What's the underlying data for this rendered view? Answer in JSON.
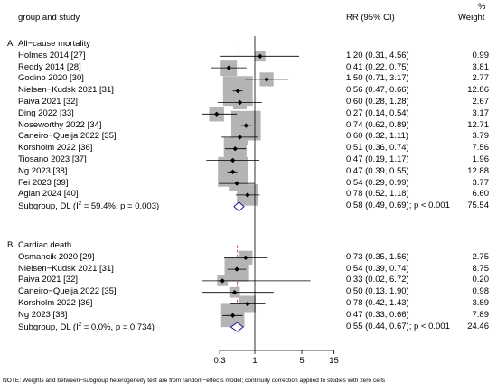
{
  "header": {
    "col_study": "group and study",
    "col_rr": "RR (95% CI)",
    "col_weight_1": "%",
    "col_weight_2": "Weight"
  },
  "note": "NOTE: Weights and between−subgroup heterogeneity test are from random−effects model; continuity correction applied to studies with zero cells",
  "chart_data": {
    "type": "forest",
    "x_scale": "log",
    "x_ticks": [
      0.3,
      1,
      5,
      15
    ],
    "x_tick_labels": [
      "0.3",
      "1",
      "5",
      "15"
    ],
    "reference_line": 1,
    "groups": [
      {
        "letter": "A",
        "title": "All−cause mortality",
        "pooled_estimate": 0.58,
        "studies": [
          {
            "label": "Holmes 2014 [27]",
            "rr": 1.2,
            "lo": 0.31,
            "hi": 4.56,
            "ci_text": "1.20 (0.31, 4.56)",
            "weight": "0.99"
          },
          {
            "label": "Reddy 2014 [28]",
            "rr": 0.41,
            "lo": 0.22,
            "hi": 0.75,
            "ci_text": "0.41 (0.22, 0.75)",
            "weight": "3.81"
          },
          {
            "label": "Godino 2020 [30]",
            "rr": 1.5,
            "lo": 0.71,
            "hi": 3.17,
            "ci_text": "1.50 (0.71, 3.17)",
            "weight": "2.77"
          },
          {
            "label": "Nielsen−Kudsk 2021 [31]",
            "rr": 0.56,
            "lo": 0.47,
            "hi": 0.66,
            "ci_text": "0.56 (0.47, 0.66)",
            "weight": "12.86"
          },
          {
            "label": "Paiva 2021 [32]",
            "rr": 0.6,
            "lo": 0.28,
            "hi": 1.28,
            "ci_text": "0.60 (0.28, 1.28)",
            "weight": "2.67"
          },
          {
            "label": "Ding 2022 [33]",
            "rr": 0.27,
            "lo": 0.14,
            "hi": 0.54,
            "ci_text": "0.27 (0.14, 0.54)",
            "weight": "3.17"
          },
          {
            "label": "Noseworthy 2022 [34]",
            "rr": 0.74,
            "lo": 0.62,
            "hi": 0.89,
            "ci_text": "0.74 (0.62, 0.89)",
            "weight": "12.71"
          },
          {
            "label": "Caneiro−Queija 2022 [35]",
            "rr": 0.6,
            "lo": 0.32,
            "hi": 1.11,
            "ci_text": "0.60 (0.32, 1.11)",
            "weight": "3.79"
          },
          {
            "label": "Korsholm 2022 [36]",
            "rr": 0.51,
            "lo": 0.36,
            "hi": 0.74,
            "ci_text": "0.51 (0.36, 0.74)",
            "weight": "7.56"
          },
          {
            "label": "Tiosano 2023 [37]",
            "rr": 0.47,
            "lo": 0.19,
            "hi": 1.17,
            "ci_text": "0.47 (0.19, 1.17)",
            "weight": "1.96"
          },
          {
            "label": "Ng 2023 [38]",
            "rr": 0.47,
            "lo": 0.39,
            "hi": 0.55,
            "ci_text": "0.47 (0.39, 0.55)",
            "weight": "12.88"
          },
          {
            "label": "Fei 2023 [39]",
            "rr": 0.54,
            "lo": 0.29,
            "hi": 0.99,
            "ci_text": "0.54 (0.29, 0.99)",
            "weight": "3.77"
          },
          {
            "label": "Aglan 2024 [40]",
            "rr": 0.78,
            "lo": 0.52,
            "hi": 1.18,
            "ci_text": "0.78 (0.52, 1.18)",
            "weight": "6.60"
          }
        ],
        "subgroup": {
          "label_prefix": "Subgroup, DL (I",
          "label_sup": "2",
          "label_suffix": " = 59.4%, p = 0.003)",
          "rr": 0.58,
          "lo": 0.49,
          "hi": 0.69,
          "ci_text": "0.58 (0.49, 0.69); p < 0.001",
          "weight": "75.54"
        }
      },
      {
        "letter": "B",
        "title": "Cardiac death",
        "pooled_estimate": 0.55,
        "studies": [
          {
            "label": "Osmancik 2020 [29]",
            "rr": 0.73,
            "lo": 0.35,
            "hi": 1.56,
            "ci_text": "0.73 (0.35, 1.56)",
            "weight": "2.75"
          },
          {
            "label": "Nielsen−Kudsk 2021 [31]",
            "rr": 0.54,
            "lo": 0.39,
            "hi": 0.74,
            "ci_text": "0.54 (0.39, 0.74)",
            "weight": "8.75"
          },
          {
            "label": "Paiva 2021 [32]",
            "rr": 0.33,
            "lo": 0.02,
            "hi": 6.72,
            "ci_text": "0.33 (0.02, 6.72)",
            "weight": "0.20"
          },
          {
            "label": "Caneiro−Queija 2022 [35]",
            "rr": 0.5,
            "lo": 0.13,
            "hi": 1.9,
            "ci_text": "0.50 (0.13, 1.90)",
            "weight": "0.98"
          },
          {
            "label": "Korsholm 2022 [36]",
            "rr": 0.78,
            "lo": 0.42,
            "hi": 1.43,
            "ci_text": "0.78 (0.42, 1.43)",
            "weight": "3.89"
          },
          {
            "label": "Ng 2023 [38]",
            "rr": 0.47,
            "lo": 0.33,
            "hi": 0.66,
            "ci_text": "0.47 (0.33, 0.66)",
            "weight": "7.89"
          }
        ],
        "subgroup": {
          "label_prefix": "Subgroup, DL (I",
          "label_sup": "2",
          "label_suffix": " = 0.0%, p = 0.734)",
          "rr": 0.55,
          "lo": 0.44,
          "hi": 0.67,
          "ci_text": "0.55 (0.44, 0.67); p < 0.001",
          "weight": "24.46"
        }
      }
    ],
    "colors": {
      "box": "#b4b4b4",
      "ci_line": "#000000",
      "diamond": "#1a1a8c",
      "pooled_line": "#c0392b",
      "axis": "#000000"
    }
  }
}
